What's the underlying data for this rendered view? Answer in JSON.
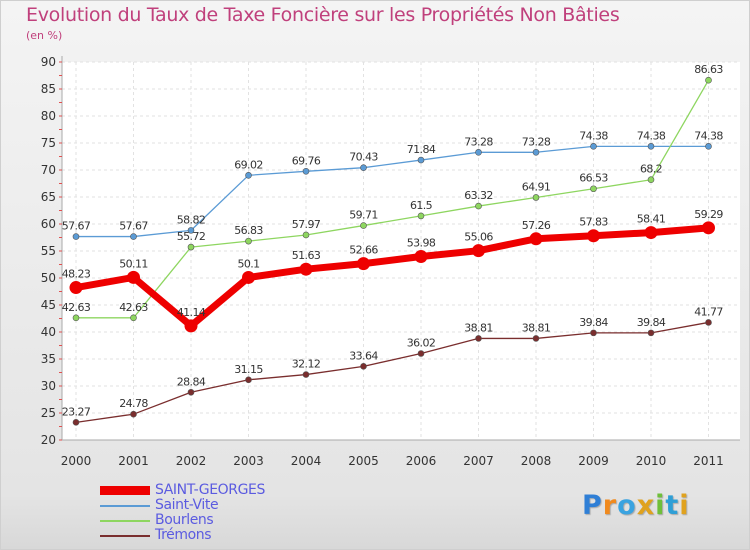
{
  "colors": {
    "title": "#c0407c",
    "axis_text": "#333333",
    "legend_text": "#5b5be0"
  },
  "logo": {
    "text": "Proxiti"
  },
  "chart_data": {
    "type": "line",
    "title": "Evolution du Taux de Taxe Foncière sur les Propriétés Non Bâties",
    "subtitle": "(en %)",
    "xlabel": "",
    "ylabel": "(en %)",
    "ylim": [
      20,
      90
    ],
    "yticks": [
      20,
      25,
      30,
      35,
      40,
      45,
      50,
      55,
      60,
      65,
      70,
      75,
      80,
      85,
      90
    ],
    "categories": [
      "2000",
      "2001",
      "2002",
      "2003",
      "2004",
      "2005",
      "2006",
      "2007",
      "2008",
      "2009",
      "2010",
      "2011"
    ],
    "grid": true,
    "legend_position": "bottom-left",
    "series": [
      {
        "name": "Saint-Vite",
        "color": "#5b9bd5",
        "values": [
          57.67,
          57.67,
          58.82,
          69.02,
          69.76,
          70.43,
          71.84,
          73.28,
          73.28,
          74.38,
          74.38,
          74.38
        ],
        "labels": [
          "57.67",
          "57.67",
          "58.82",
          "69.02",
          "69.76",
          "70.43",
          "71.84",
          "73.28",
          "73.28",
          "74.38",
          "74.38",
          "74.38"
        ]
      },
      {
        "name": "Bourlens",
        "color": "#8ed660",
        "values": [
          42.63,
          42.63,
          55.72,
          56.83,
          57.97,
          59.71,
          61.5,
          63.32,
          64.91,
          66.53,
          68.2,
          86.63
        ],
        "labels": [
          "42.63",
          "42.63",
          "55.72",
          "56.83",
          "57.97",
          "59.71",
          "61.5",
          "63.32",
          "64.91",
          "66.53",
          "68.2",
          "86.63"
        ]
      },
      {
        "name": "Trémons",
        "color": "#7a2e2e",
        "values": [
          23.27,
          24.78,
          28.84,
          31.15,
          32.12,
          33.64,
          36.02,
          38.81,
          38.81,
          39.84,
          39.84,
          41.77
        ],
        "labels": [
          "23.27",
          "24.78",
          "28.84",
          "31.15",
          "32.12",
          "33.64",
          "36.02",
          "38.81",
          "38.81",
          "39.84",
          "39.84",
          "41.77"
        ]
      },
      {
        "name": "SAINT-GEORGES",
        "color": "#ee0000",
        "values": [
          48.23,
          50.11,
          41.14,
          50.1,
          51.63,
          52.66,
          53.98,
          55.06,
          57.26,
          57.83,
          58.41,
          59.29
        ],
        "labels": [
          "48.23",
          "50.11",
          "41.14",
          "50.1",
          "51.63",
          "52.66",
          "53.98",
          "55.06",
          "57.26",
          "57.83",
          "58.41",
          "59.29"
        ]
      }
    ],
    "legend_order": [
      "SAINT-GEORGES",
      "Saint-Vite",
      "Bourlens",
      "Trémons"
    ]
  }
}
